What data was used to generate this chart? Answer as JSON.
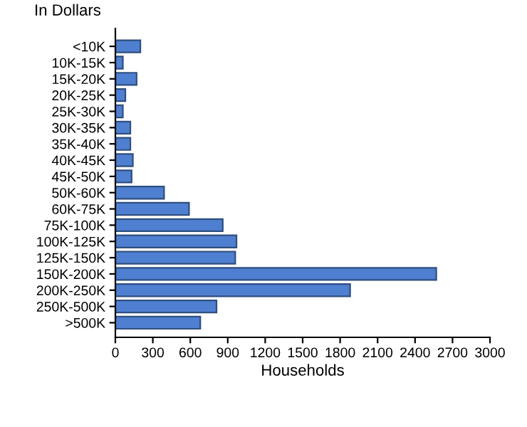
{
  "chart_data": {
    "type": "bar",
    "orientation": "horizontal",
    "title": "In Dollars",
    "xlabel": "Households",
    "categories": [
      "<10K",
      "10K-15K",
      "15K-20K",
      "20K-25K",
      "25K-30K",
      "30K-35K",
      "35K-40K",
      "40K-45K",
      "45K-50K",
      "50K-60K",
      "60K-75K",
      "75K-100K",
      "100K-125K",
      "125K-150K",
      "150K-200K",
      "200K-250K",
      "250K-500K",
      ">500K"
    ],
    "values": [
      200,
      60,
      170,
      80,
      60,
      120,
      120,
      140,
      130,
      390,
      590,
      860,
      970,
      960,
      2570,
      1880,
      810,
      680
    ],
    "color": "#4f7fd0",
    "xlim": [
      0,
      3000
    ],
    "xticks": [
      0,
      300,
      600,
      900,
      1200,
      1500,
      1800,
      2100,
      2400,
      2700,
      3000
    ],
    "grid": false,
    "legend": false
  }
}
